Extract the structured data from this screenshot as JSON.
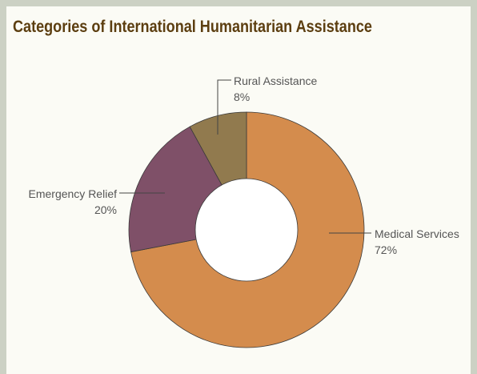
{
  "chart_data": {
    "type": "pie",
    "title": "Categories of International Humanitarian Assistance",
    "donut": true,
    "slices": [
      {
        "label": "Medical Services",
        "value": 72,
        "value_label": "72%",
        "color": "#d48c4d"
      },
      {
        "label": "Emergency Relief",
        "value": 20,
        "value_label": "20%",
        "color": "#7f5068"
      },
      {
        "label": "Rural Assistance",
        "value": 8,
        "value_label": "8%",
        "color": "#917a4e"
      }
    ]
  }
}
